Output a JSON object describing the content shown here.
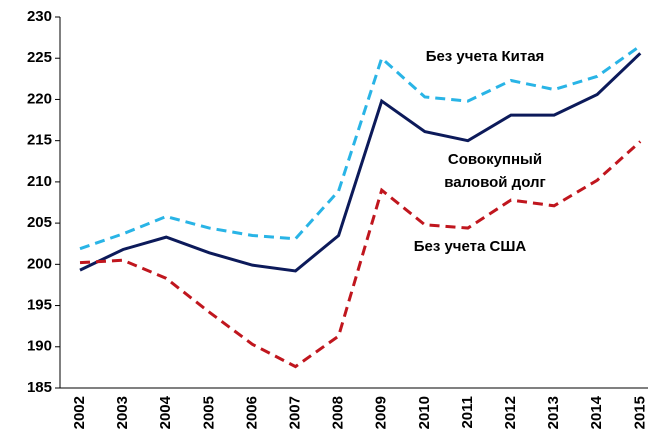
{
  "chart_data": {
    "type": "line",
    "categories": [
      "2002",
      "2003",
      "2004",
      "2005",
      "2006",
      "2007",
      "2008",
      "2009",
      "2010",
      "2011",
      "2012",
      "2013",
      "2014",
      "2015"
    ],
    "series": [
      {
        "name": "Без учета Китая",
        "color": "#29b4e6",
        "dash": true,
        "values": [
          201.9,
          203.7,
          205.8,
          204.4,
          203.5,
          203.1,
          208.9,
          225.0,
          220.3,
          219.8,
          222.3,
          221.2,
          222.8,
          226.5
        ]
      },
      {
        "name": "Совокупный валовой долг",
        "color": "#0c1a5a",
        "dash": false,
        "values": [
          199.3,
          201.8,
          203.3,
          201.4,
          199.9,
          199.2,
          203.5,
          219.8,
          216.1,
          215.0,
          218.1,
          218.1,
          220.6,
          225.6
        ]
      },
      {
        "name": "Без учета США",
        "color": "#c0161e",
        "dash": true,
        "values": [
          200.2,
          200.5,
          198.3,
          194.2,
          190.3,
          187.6,
          191.3,
          209.0,
          204.8,
          204.4,
          207.8,
          207.1,
          210.2,
          214.9
        ]
      }
    ],
    "ylim": [
      185,
      230
    ],
    "yticks": [
      185,
      190,
      195,
      200,
      205,
      210,
      215,
      220,
      225,
      230
    ],
    "grid": false
  }
}
